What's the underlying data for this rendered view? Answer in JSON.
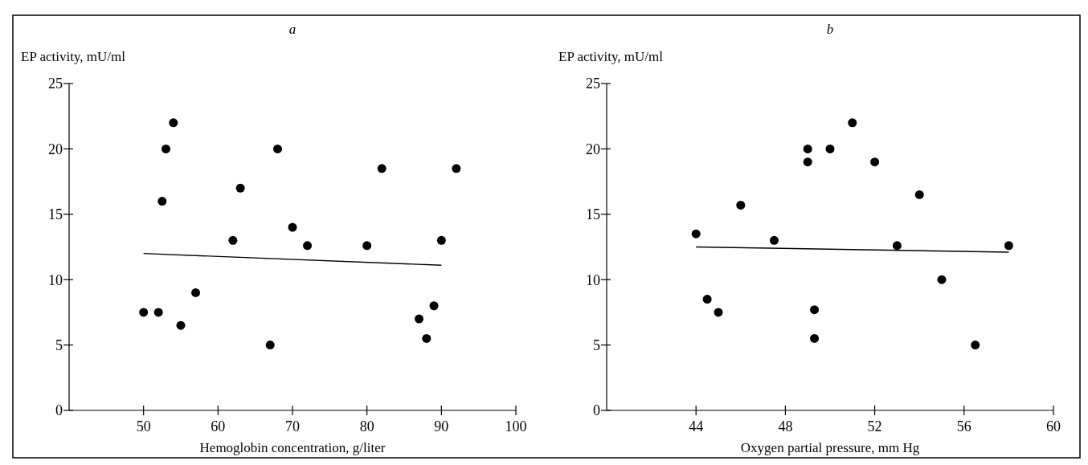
{
  "chart_data": [
    {
      "type": "scatter",
      "title": "a",
      "xlabel": "Hemoglobin concentration, g/liter",
      "ylabel": "EP activity, mU/ml",
      "xlim": [
        40,
        100
      ],
      "xticks": [
        50,
        60,
        70,
        80,
        90,
        100
      ],
      "ylim": [
        0,
        25
      ],
      "yticks": [
        0,
        5,
        10,
        15,
        20,
        25
      ],
      "grid": false,
      "marker": "circle",
      "series": [
        {
          "color": "#000000",
          "x": [
            50,
            52,
            52.5,
            53,
            54,
            55,
            57,
            62,
            63,
            67,
            68,
            70,
            72,
            80,
            82,
            87,
            88,
            89,
            90,
            92
          ],
          "values": [
            7.5,
            7.5,
            16,
            20,
            22,
            6.5,
            9,
            13,
            17,
            5,
            20,
            14,
            12.6,
            12.6,
            18.5,
            7,
            5.5,
            8,
            13,
            18.5
          ]
        },
        {
          "type": "line",
          "color": "#000000",
          "marker": "none",
          "line_style": "solid",
          "x": [
            50,
            90
          ],
          "values": [
            12,
            11.1
          ]
        }
      ]
    },
    {
      "type": "scatter",
      "title": "b",
      "xlabel": "Oxygen partial pressure, mm Hg",
      "ylabel": "EP activity, mU/ml",
      "xlim": [
        40,
        60
      ],
      "xticks": [
        44,
        48,
        52,
        56,
        60
      ],
      "ylim": [
        0,
        25
      ],
      "yticks": [
        0,
        5,
        10,
        15,
        20,
        25
      ],
      "grid": false,
      "marker": "circle",
      "series": [
        {
          "color": "#000000",
          "x": [
            44,
            44.5,
            45,
            46,
            47.5,
            49,
            49,
            49.3,
            49.3,
            50,
            51,
            52,
            53,
            54,
            55,
            56.5,
            58
          ],
          "values": [
            13.5,
            8.5,
            7.5,
            15.7,
            13,
            20,
            19,
            7.7,
            5.5,
            20,
            22,
            19,
            12.6,
            16.5,
            10,
            5,
            12.6
          ]
        },
        {
          "type": "line",
          "color": "#000000",
          "marker": "none",
          "line_style": "solid",
          "x": [
            44,
            58
          ],
          "values": [
            12.5,
            12.1
          ]
        }
      ]
    }
  ]
}
